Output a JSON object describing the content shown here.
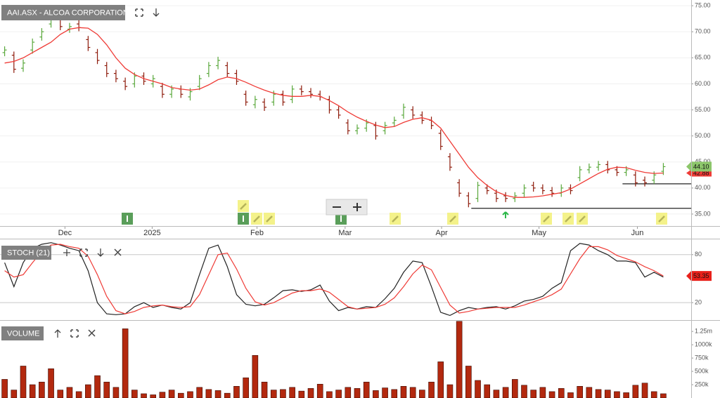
{
  "chart_data": [
    {
      "type": "ohlc",
      "title": "AAI.ASX - ALCOA CORPORATION",
      "open": [
        66,
        65.5,
        63,
        66.5,
        69,
        71.5,
        72.5,
        70.5,
        71.5,
        68.5,
        66,
        63.5,
        62,
        60.5,
        60,
        61.5,
        60,
        59.5,
        58,
        59,
        57.5,
        59.5,
        62,
        63.5,
        63.5,
        62,
        58,
        56,
        56.5,
        56.5,
        58,
        57,
        59,
        58.5,
        58,
        57,
        55,
        52.5,
        51,
        51.5,
        52,
        51,
        52.5,
        54,
        55,
        54,
        53,
        50.5,
        46,
        41,
        38.5,
        38,
        40,
        39,
        38.5,
        38,
        39,
        40.5,
        40,
        39.5,
        39,
        40,
        42,
        43.5,
        44,
        44.5,
        43.5,
        43,
        42.5,
        41.5,
        41.5,
        43.2
      ],
      "high": [
        67.2,
        66.2,
        64.7,
        68.7,
        70.7,
        74.2,
        73.2,
        71.7,
        72.2,
        69.2,
        66.7,
        64.2,
        62.7,
        61.2,
        62.2,
        62.2,
        61.7,
        60.2,
        59.7,
        59.7,
        59.2,
        61.7,
        64.2,
        65.2,
        64.2,
        62.7,
        58.7,
        57.7,
        57.2,
        58.7,
        58.7,
        59.7,
        59.7,
        59.2,
        58.7,
        57.7,
        55.7,
        53.2,
        52.2,
        53.2,
        52.7,
        52.7,
        53.7,
        56.2,
        55.7,
        54.7,
        53.7,
        51.2,
        46.7,
        41.7,
        39.2,
        41.2,
        40.7,
        39.7,
        39.2,
        39.2,
        40.7,
        41.2,
        40.7,
        40.2,
        40.7,
        40.7,
        44.2,
        44.7,
        45.2,
        45.2,
        44.2,
        44.2,
        43.2,
        42.2,
        43.2,
        44.8
      ],
      "low": [
        65.3,
        62.1,
        62.3,
        65.8,
        68.3,
        70.8,
        70.3,
        69.8,
        70.1,
        66.3,
        63.8,
        61.3,
        60.3,
        58.8,
        59.3,
        59.8,
        59.3,
        57.3,
        57.3,
        57.3,
        56.8,
        58.8,
        61.3,
        62.8,
        61.3,
        59.8,
        55.8,
        55.3,
        54.8,
        55.8,
        55.8,
        56.3,
        57.8,
        57.3,
        56.8,
        54.3,
        53.3,
        50.3,
        50.3,
        50.8,
        49.3,
        50.3,
        51.8,
        53.3,
        53.3,
        52.3,
        51.3,
        47.3,
        43.3,
        38.3,
        36.3,
        37.3,
        38.8,
        37.3,
        37.3,
        37.3,
        38.3,
        39.3,
        38.8,
        38.3,
        38.3,
        38.8,
        41.3,
        42.8,
        43.3,
        42.8,
        42.3,
        42.3,
        40.3,
        40.3,
        40.8,
        42.5
      ],
      "close": [
        66.5,
        62.8,
        64,
        68,
        70,
        73.5,
        71,
        71,
        70.8,
        67,
        64.5,
        62,
        61,
        59.5,
        61.5,
        60.5,
        61,
        58,
        59,
        58,
        58.5,
        61,
        63.5,
        64.5,
        62,
        60.5,
        56.5,
        57,
        55.5,
        58,
        56.5,
        59,
        58.5,
        58,
        57.5,
        55,
        54,
        51,
        51.5,
        52.5,
        50,
        52,
        53,
        55.5,
        54,
        53,
        52,
        48,
        44,
        39,
        37,
        40.5,
        39.5,
        38,
        38,
        38.5,
        40,
        40,
        39.5,
        39,
        40,
        39.5,
        43.5,
        44,
        44.5,
        43.5,
        43,
        43.5,
        41,
        41,
        42.5,
        44.1
      ],
      "close_label": "44.10",
      "rise_color": "#5aa83c",
      "fall_color": "#8e1b0b",
      "overlay": {
        "color": "#ef3b36",
        "values": [
          64,
          64.3,
          65,
          66,
          67,
          68,
          69.5,
          70.5,
          70.8,
          70.7,
          69.5,
          67.5,
          65,
          63,
          61.8,
          61,
          60.5,
          60,
          59.3,
          59,
          58.8,
          59,
          59.8,
          60.8,
          61.3,
          61,
          60.3,
          59.5,
          58.8,
          58.2,
          57.8,
          57.6,
          57.6,
          57.8,
          57.6,
          56.8,
          55.8,
          54.6,
          53.6,
          52.8,
          52.1,
          51.6,
          51.8,
          52.6,
          53.2,
          53.5,
          53,
          51.5,
          49,
          46.5,
          44,
          42,
          40.5,
          39.3,
          38.6,
          38.2,
          38.2,
          38.3,
          38.5,
          38.8,
          39.1,
          39.8,
          40.8,
          41.8,
          42.8,
          43.6,
          44,
          43.9,
          43.4,
          43,
          42.8,
          42.88
        ]
      },
      "levels": [
        {
          "value": 36.1,
          "start": 50.3
        },
        {
          "value": 40.8,
          "start": 66.6
        }
      ],
      "xlim": [
        -0.5,
        74
      ],
      "xticks": [
        {
          "value": 6.5,
          "label": "Dec"
        },
        {
          "value": 15.9,
          "label": "2025"
        },
        {
          "value": 27.2,
          "label": "Feb"
        },
        {
          "value": 36.7,
          "label": "Mar"
        },
        {
          "value": 47.1,
          "label": "Apr"
        },
        {
          "value": 57.6,
          "label": "May"
        },
        {
          "value": 68.2,
          "label": "Jun"
        }
      ],
      "ylim": [
        32.7,
        76.1
      ],
      "yticks": [
        {
          "value": 35,
          "label": "35.00"
        },
        {
          "value": 40,
          "label": "40.00"
        },
        {
          "value": 45,
          "label": "45.00"
        },
        {
          "value": 50,
          "label": "50.00"
        },
        {
          "value": 55,
          "label": "55.00"
        },
        {
          "value": 60,
          "label": "60.00"
        },
        {
          "value": 65,
          "label": "65.00"
        },
        {
          "value": 70,
          "label": "70.00"
        },
        {
          "value": 75,
          "label": "75.00"
        }
      ],
      "grid": true
    },
    {
      "type": "line",
      "title": "STOCH (21)",
      "series": [
        {
          "color": "#222222",
          "values": [
            70,
            40,
            70,
            88,
            93,
            95,
            92,
            88,
            85,
            60,
            20,
            6,
            5,
            6,
            15,
            20,
            14,
            17,
            14,
            12,
            20,
            55,
            88,
            92,
            65,
            30,
            18,
            16,
            18,
            26,
            35,
            36,
            34,
            36,
            42,
            22,
            10,
            14,
            12,
            15,
            14,
            25,
            38,
            58,
            72,
            70,
            40,
            8,
            4,
            10,
            14,
            12,
            14,
            15,
            12,
            16,
            22,
            24,
            28,
            38,
            45,
            85,
            94,
            92,
            85,
            80,
            72,
            72,
            70,
            52,
            58,
            52
          ]
        },
        {
          "color": "#ef3b36",
          "values": [
            60,
            52,
            55,
            70,
            84,
            92,
            93,
            90,
            88,
            78,
            55,
            28,
            10,
            6,
            9,
            14,
            16,
            17,
            15,
            14,
            15,
            30,
            55,
            80,
            82,
            62,
            38,
            21,
            17,
            20,
            26,
            32,
            35,
            35,
            37,
            33,
            24,
            15,
            12,
            13,
            14,
            18,
            26,
            40,
            56,
            67,
            61,
            39,
            17,
            7,
            9,
            12,
            13,
            14,
            14,
            14,
            17,
            21,
            25,
            30,
            37,
            56,
            75,
            90,
            90,
            86,
            79,
            75,
            71,
            65,
            60,
            53.35
          ]
        }
      ],
      "xlim": [
        -0.5,
        74
      ],
      "ylim": [
        -0.9,
        99.1
      ],
      "yticks": [
        20,
        80
      ],
      "grid": true
    },
    {
      "type": "bar",
      "title": "VOLUME",
      "color": "#b3290f",
      "values": [
        350000,
        150000,
        600000,
        250000,
        300000,
        550000,
        150000,
        200000,
        120000,
        250000,
        420000,
        300000,
        200000,
        1300000,
        150000,
        80000,
        60000,
        110000,
        150000,
        90000,
        120000,
        200000,
        160000,
        140000,
        90000,
        220000,
        380000,
        800000,
        300000,
        150000,
        160000,
        200000,
        130000,
        180000,
        260000,
        120000,
        150000,
        200000,
        180000,
        300000,
        140000,
        190000,
        160000,
        220000,
        200000,
        150000,
        300000,
        680000,
        250000,
        1440000,
        600000,
        330000,
        250000,
        150000,
        200000,
        350000,
        240000,
        150000,
        200000,
        120000,
        180000,
        100000,
        220000,
        200000,
        160000,
        150000,
        120000,
        100000,
        240000,
        280000,
        120000,
        80000
      ],
      "xlim": [
        -0.5,
        74
      ],
      "ylim": [
        0,
        1450000
      ],
      "yticks": [
        {
          "value": 250000,
          "label": "250k"
        },
        {
          "value": 500000,
          "label": "500k"
        },
        {
          "value": 750000,
          "label": "750k"
        },
        {
          "value": 1000000,
          "label": "1000k"
        },
        {
          "value": 1250000,
          "label": "1.25m"
        }
      ]
    }
  ]
}
